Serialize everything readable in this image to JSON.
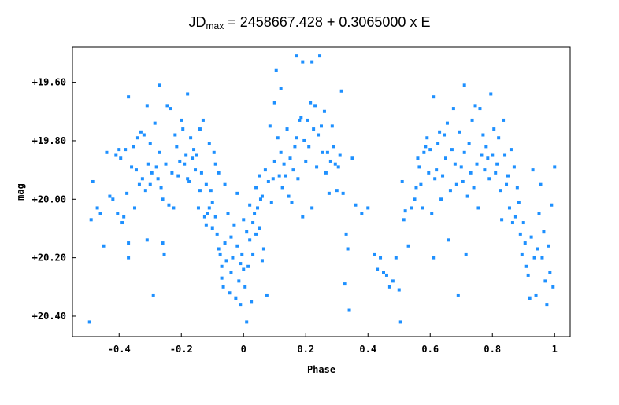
{
  "chart_data": {
    "type": "scatter",
    "title": {
      "prefix": "JD",
      "subscript": "max",
      "suffix": " = 2458667.428 + 0.3065000 x E"
    },
    "xlabel": "Phase",
    "ylabel": "mag",
    "xlim": [
      -0.55,
      1.05
    ],
    "ylim": [
      20.47,
      19.48
    ],
    "y_inverted": true,
    "x_ticks": [
      -0.4,
      -0.2,
      0,
      0.2,
      0.4,
      0.6,
      0.8,
      1
    ],
    "x_tick_labels": [
      "-0.4",
      "-0.2",
      "0",
      "0.2",
      "0.4",
      "0.6",
      "0.8",
      "1"
    ],
    "y_ticks": [
      19.6,
      19.8,
      20.0,
      20.2,
      20.4
    ],
    "y_tick_labels": [
      "+19.60",
      "+19.80",
      "+20.00",
      "+20.20",
      "+20.40"
    ],
    "grid": false,
    "marker_color": "#1e90ff",
    "points": [
      [
        -0.495,
        20.42
      ],
      [
        -0.49,
        20.07
      ],
      [
        -0.485,
        19.94
      ],
      [
        -0.47,
        20.03
      ],
      [
        -0.46,
        20.05
      ],
      [
        -0.45,
        20.16
      ],
      [
        -0.44,
        19.84
      ],
      [
        -0.43,
        19.99
      ],
      [
        -0.42,
        20.0
      ],
      [
        -0.41,
        19.85
      ],
      [
        -0.405,
        20.05
      ],
      [
        -0.4,
        19.83
      ],
      [
        -0.395,
        19.86
      ],
      [
        -0.39,
        20.08
      ],
      [
        -0.385,
        20.06
      ],
      [
        -0.38,
        19.83
      ],
      [
        -0.375,
        19.98
      ],
      [
        -0.37,
        20.2
      ],
      [
        -0.37,
        20.15
      ],
      [
        -0.37,
        19.65
      ],
      [
        -0.36,
        19.89
      ],
      [
        -0.355,
        19.82
      ],
      [
        -0.35,
        20.03
      ],
      [
        -0.345,
        19.9
      ],
      [
        -0.34,
        19.79
      ],
      [
        -0.335,
        19.95
      ],
      [
        -0.33,
        19.77
      ],
      [
        -0.325,
        19.93
      ],
      [
        -0.32,
        19.78
      ],
      [
        -0.315,
        19.97
      ],
      [
        -0.31,
        19.68
      ],
      [
        -0.31,
        20.14
      ],
      [
        -0.305,
        19.88
      ],
      [
        -0.3,
        19.81
      ],
      [
        -0.3,
        19.95
      ],
      [
        -0.295,
        19.91
      ],
      [
        -0.29,
        20.33
      ],
      [
        -0.285,
        19.74
      ],
      [
        -0.28,
        19.89
      ],
      [
        -0.275,
        19.93
      ],
      [
        -0.27,
        19.61
      ],
      [
        -0.27,
        19.84
      ],
      [
        -0.265,
        19.96
      ],
      [
        -0.26,
        20.0
      ],
      [
        -0.26,
        20.15
      ],
      [
        -0.255,
        20.19
      ],
      [
        -0.25,
        19.88
      ],
      [
        -0.245,
        19.68
      ],
      [
        -0.24,
        20.02
      ],
      [
        -0.235,
        19.69
      ],
      [
        -0.23,
        19.91
      ],
      [
        -0.225,
        20.03
      ],
      [
        -0.22,
        19.78
      ],
      [
        -0.215,
        19.82
      ],
      [
        -0.21,
        19.92
      ],
      [
        -0.205,
        19.87
      ],
      [
        -0.2,
        19.73
      ],
      [
        -0.195,
        19.76
      ],
      [
        -0.19,
        19.88
      ],
      [
        -0.185,
        19.85
      ],
      [
        -0.18,
        19.93
      ],
      [
        -0.18,
        19.64
      ],
      [
        -0.175,
        19.94
      ],
      [
        -0.17,
        19.79
      ],
      [
        -0.165,
        19.86
      ],
      [
        -0.16,
        19.83
      ],
      [
        -0.155,
        19.9
      ],
      [
        -0.15,
        19.85
      ],
      [
        -0.145,
        20.03
      ],
      [
        -0.14,
        19.97
      ],
      [
        -0.14,
        19.76
      ],
      [
        -0.135,
        19.91
      ],
      [
        -0.13,
        19.73
      ],
      [
        -0.125,
        20.06
      ],
      [
        -0.12,
        19.95
      ],
      [
        -0.12,
        20.09
      ],
      [
        -0.115,
        20.05
      ],
      [
        -0.11,
        19.81
      ],
      [
        -0.11,
        20.03
      ],
      [
        -0.105,
        19.97
      ],
      [
        -0.1,
        20.01
      ],
      [
        -0.1,
        20.1
      ],
      [
        -0.095,
        19.84
      ],
      [
        -0.09,
        20.06
      ],
      [
        -0.09,
        19.88
      ],
      [
        -0.085,
        20.12
      ],
      [
        -0.08,
        19.91
      ],
      [
        -0.08,
        20.17
      ],
      [
        -0.075,
        20.19
      ],
      [
        -0.07,
        20.23
      ],
      [
        -0.07,
        20.27
      ],
      [
        -0.065,
        20.3
      ],
      [
        -0.06,
        19.95
      ],
      [
        -0.06,
        20.15
      ],
      [
        -0.055,
        20.21
      ],
      [
        -0.05,
        20.05
      ],
      [
        -0.045,
        20.32
      ],
      [
        -0.04,
        20.25
      ],
      [
        -0.04,
        20.13
      ],
      [
        -0.035,
        20.2
      ],
      [
        -0.03,
        20.09
      ],
      [
        -0.025,
        20.34
      ],
      [
        -0.02,
        19.98
      ],
      [
        -0.02,
        20.16
      ],
      [
        -0.015,
        20.28
      ],
      [
        -0.01,
        20.22
      ],
      [
        -0.01,
        20.36
      ],
      [
        -0.005,
        20.19
      ],
      [
        0.0,
        20.07
      ],
      [
        0.0,
        20.24
      ],
      [
        0.005,
        20.3
      ],
      [
        0.01,
        20.11
      ],
      [
        0.01,
        20.42
      ],
      [
        0.015,
        20.23
      ],
      [
        0.02,
        20.02
      ],
      [
        0.02,
        20.14
      ],
      [
        0.025,
        20.35
      ],
      [
        0.03,
        20.08
      ],
      [
        0.03,
        20.19
      ],
      [
        0.035,
        20.05
      ],
      [
        0.04,
        19.96
      ],
      [
        0.04,
        20.12
      ],
      [
        0.045,
        20.03
      ],
      [
        0.05,
        19.92
      ],
      [
        0.05,
        20.1
      ],
      [
        0.055,
        20.0
      ],
      [
        0.06,
        19.99
      ],
      [
        0.06,
        20.21
      ],
      [
        0.065,
        20.17
      ],
      [
        0.07,
        19.9
      ],
      [
        0.075,
        20.33
      ],
      [
        0.08,
        19.94
      ],
      [
        0.085,
        19.75
      ],
      [
        0.09,
        20.01
      ],
      [
        0.095,
        19.93
      ],
      [
        0.1,
        19.67
      ],
      [
        0.1,
        19.87
      ],
      [
        0.105,
        19.56
      ],
      [
        0.11,
        19.79
      ],
      [
        0.115,
        19.92
      ],
      [
        0.12,
        19.62
      ],
      [
        0.12,
        19.84
      ],
      [
        0.125,
        19.96
      ],
      [
        0.13,
        19.88
      ],
      [
        0.135,
        19.92
      ],
      [
        0.14,
        19.76
      ],
      [
        0.145,
        19.99
      ],
      [
        0.15,
        19.86
      ],
      [
        0.155,
        20.01
      ],
      [
        0.16,
        19.9
      ],
      [
        0.165,
        19.82
      ],
      [
        0.17,
        19.51
      ],
      [
        0.17,
        19.79
      ],
      [
        0.175,
        19.93
      ],
      [
        0.18,
        19.73
      ],
      [
        0.185,
        19.72
      ],
      [
        0.19,
        19.53
      ],
      [
        0.19,
        20.06
      ],
      [
        0.195,
        19.8
      ],
      [
        0.2,
        19.87
      ],
      [
        0.205,
        19.73
      ],
      [
        0.21,
        19.82
      ],
      [
        0.215,
        19.67
      ],
      [
        0.22,
        19.53
      ],
      [
        0.22,
        20.03
      ],
      [
        0.225,
        19.76
      ],
      [
        0.23,
        19.68
      ],
      [
        0.235,
        19.89
      ],
      [
        0.24,
        19.78
      ],
      [
        0.245,
        19.51
      ],
      [
        0.25,
        19.75
      ],
      [
        0.255,
        19.84
      ],
      [
        0.26,
        19.7
      ],
      [
        0.265,
        19.91
      ],
      [
        0.27,
        19.84
      ],
      [
        0.275,
        19.98
      ],
      [
        0.28,
        19.87
      ],
      [
        0.285,
        19.75
      ],
      [
        0.29,
        19.82
      ],
      [
        0.295,
        19.88
      ],
      [
        0.3,
        19.97
      ],
      [
        0.305,
        19.89
      ],
      [
        0.31,
        19.85
      ],
      [
        0.315,
        19.63
      ],
      [
        0.32,
        19.98
      ],
      [
        0.325,
        20.29
      ],
      [
        0.33,
        20.12
      ],
      [
        0.335,
        20.17
      ],
      [
        0.34,
        20.38
      ],
      [
        0.35,
        19.86
      ],
      [
        0.36,
        20.02
      ],
      [
        0.38,
        20.05
      ],
      [
        0.4,
        20.03
      ],
      [
        0.42,
        20.19
      ],
      [
        0.43,
        20.24
      ],
      [
        0.44,
        20.2
      ],
      [
        0.45,
        20.25
      ],
      [
        0.46,
        20.26
      ],
      [
        0.47,
        20.3
      ],
      [
        0.48,
        20.28
      ],
      [
        0.49,
        20.2
      ],
      [
        0.5,
        20.31
      ],
      [
        0.505,
        20.42
      ],
      [
        0.51,
        19.94
      ],
      [
        0.515,
        20.07
      ],
      [
        0.52,
        20.04
      ],
      [
        0.53,
        20.16
      ],
      [
        0.54,
        20.03
      ],
      [
        0.55,
        20.0
      ],
      [
        0.555,
        19.96
      ],
      [
        0.56,
        19.86
      ],
      [
        0.565,
        19.89
      ],
      [
        0.57,
        19.95
      ],
      [
        0.575,
        20.03
      ],
      [
        0.58,
        19.84
      ],
      [
        0.585,
        19.82
      ],
      [
        0.59,
        19.79
      ],
      [
        0.595,
        19.91
      ],
      [
        0.6,
        19.83
      ],
      [
        0.605,
        20.05
      ],
      [
        0.61,
        20.2
      ],
      [
        0.61,
        19.65
      ],
      [
        0.615,
        19.93
      ],
      [
        0.62,
        19.9
      ],
      [
        0.625,
        19.81
      ],
      [
        0.63,
        19.77
      ],
      [
        0.635,
        20.0
      ],
      [
        0.64,
        19.92
      ],
      [
        0.645,
        19.78
      ],
      [
        0.65,
        19.86
      ],
      [
        0.655,
        19.74
      ],
      [
        0.66,
        20.14
      ],
      [
        0.665,
        19.97
      ],
      [
        0.67,
        19.83
      ],
      [
        0.675,
        19.69
      ],
      [
        0.68,
        19.88
      ],
      [
        0.685,
        19.95
      ],
      [
        0.69,
        20.33
      ],
      [
        0.695,
        19.77
      ],
      [
        0.7,
        19.89
      ],
      [
        0.705,
        19.94
      ],
      [
        0.71,
        19.61
      ],
      [
        0.71,
        19.84
      ],
      [
        0.715,
        20.19
      ],
      [
        0.72,
        19.99
      ],
      [
        0.725,
        19.81
      ],
      [
        0.73,
        19.91
      ],
      [
        0.735,
        19.73
      ],
      [
        0.74,
        19.96
      ],
      [
        0.745,
        19.68
      ],
      [
        0.75,
        19.88
      ],
      [
        0.755,
        20.03
      ],
      [
        0.76,
        19.69
      ],
      [
        0.765,
        19.85
      ],
      [
        0.77,
        19.78
      ],
      [
        0.775,
        19.9
      ],
      [
        0.78,
        19.82
      ],
      [
        0.785,
        19.86
      ],
      [
        0.79,
        19.93
      ],
      [
        0.795,
        19.64
      ],
      [
        0.8,
        19.85
      ],
      [
        0.805,
        19.76
      ],
      [
        0.81,
        19.91
      ],
      [
        0.815,
        19.88
      ],
      [
        0.82,
        19.79
      ],
      [
        0.825,
        19.97
      ],
      [
        0.83,
        20.07
      ],
      [
        0.835,
        19.73
      ],
      [
        0.84,
        19.85
      ],
      [
        0.845,
        19.95
      ],
      [
        0.85,
        19.92
      ],
      [
        0.855,
        20.03
      ],
      [
        0.86,
        19.83
      ],
      [
        0.865,
        20.08
      ],
      [
        0.87,
        19.89
      ],
      [
        0.875,
        20.06
      ],
      [
        0.88,
        19.96
      ],
      [
        0.885,
        20.01
      ],
      [
        0.89,
        20.12
      ],
      [
        0.895,
        20.19
      ],
      [
        0.9,
        20.08
      ],
      [
        0.905,
        20.15
      ],
      [
        0.91,
        20.23
      ],
      [
        0.915,
        20.26
      ],
      [
        0.92,
        20.34
      ],
      [
        0.925,
        20.13
      ],
      [
        0.93,
        19.9
      ],
      [
        0.935,
        20.2
      ],
      [
        0.94,
        20.33
      ],
      [
        0.945,
        20.17
      ],
      [
        0.95,
        20.05
      ],
      [
        0.955,
        19.95
      ],
      [
        0.96,
        20.2
      ],
      [
        0.965,
        20.11
      ],
      [
        0.97,
        20.28
      ],
      [
        0.975,
        20.36
      ],
      [
        0.98,
        20.16
      ],
      [
        0.985,
        20.25
      ],
      [
        0.99,
        20.02
      ],
      [
        0.995,
        20.3
      ],
      [
        1.0,
        19.89
      ]
    ]
  }
}
